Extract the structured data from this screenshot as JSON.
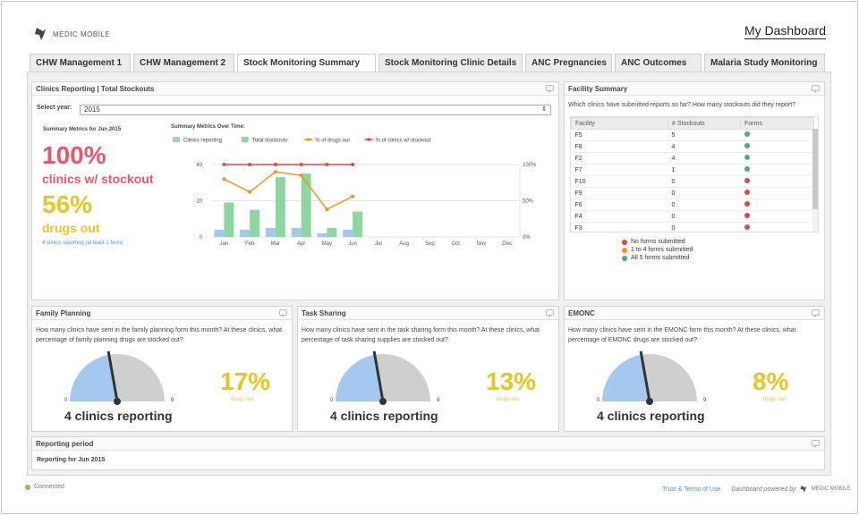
{
  "header": {
    "brand": "MEDIC MOBILE",
    "dashboard_title": "My Dashboard"
  },
  "tabs": [
    {
      "label": "CHW Management 1",
      "active": false
    },
    {
      "label": "CHW Management 2",
      "active": false
    },
    {
      "label": "Stock Monitoring Summary",
      "active": true
    },
    {
      "label": "Stock Monitoring Clinic Details",
      "active": false
    },
    {
      "label": "ANC Pregnancies",
      "active": false
    },
    {
      "label": "ANC Outcomes",
      "active": false
    },
    {
      "label": "Malaria Study Monitoring",
      "active": false
    }
  ],
  "clinics_panel": {
    "title": "Clinics Reporting | Total Stockouts",
    "select_label": "Select year:",
    "select_value": "2015",
    "summary_title": "Summary Metrics for Jun 2015",
    "stockout_pct": "100%",
    "stockout_label": "clinics w/ stockout",
    "drugs_pct": "56%",
    "drugs_label": "drugs out",
    "reporting_note": "4 clinics reporting (at least 1 form)",
    "chart_title": "Summary Metrics Over Time:"
  },
  "chart_data": {
    "type": "bar",
    "categories": [
      "Jan",
      "Feb",
      "Mar",
      "Apr",
      "May",
      "Jun",
      "Jul",
      "Aug",
      "Sep",
      "Oct",
      "Nov",
      "Dec"
    ],
    "series": [
      {
        "name": "Clinics reporting",
        "kind": "bar",
        "axis": "left",
        "color": "#a4c8f0",
        "values": [
          4,
          4,
          5,
          5,
          2,
          4,
          null,
          null,
          null,
          null,
          null,
          null
        ]
      },
      {
        "name": "Total stockouts",
        "kind": "bar",
        "axis": "left",
        "color": "#8ed6a0",
        "values": [
          19,
          15,
          33,
          35,
          5,
          14,
          null,
          null,
          null,
          null,
          null,
          null
        ]
      },
      {
        "name": "% of drugs out",
        "kind": "line",
        "axis": "right",
        "color": "#f0921e",
        "values": [
          80,
          62,
          90,
          85,
          38,
          56,
          null,
          null,
          null,
          null,
          null,
          null
        ]
      },
      {
        "name": "% of clinics w/ stockout",
        "kind": "line",
        "axis": "right",
        "color": "#e04848",
        "values": [
          100,
          100,
          100,
          100,
          100,
          100,
          null,
          null,
          null,
          null,
          null,
          null
        ]
      }
    ],
    "y_left_ticks": [
      "0",
      "20",
      "40"
    ],
    "y_right_ticks": [
      "0%",
      "50%",
      "100%"
    ],
    "ylim_left": [
      0,
      40
    ],
    "ylim_right": [
      0,
      100
    ],
    "legend": "top"
  },
  "facility_panel": {
    "title": "Facility Summary",
    "question": "Which clinics have submitted reports so far? How many stockouts did they report?",
    "columns": [
      "Facility",
      "# Stockouts",
      "Forms"
    ],
    "rows": [
      {
        "facility": "F5",
        "stockouts": "5",
        "status_color": "#4caf70"
      },
      {
        "facility": "F8",
        "stockouts": "4",
        "status_color": "#4caf70"
      },
      {
        "facility": "F2",
        "stockouts": "4",
        "status_color": "#4caf70"
      },
      {
        "facility": "F7",
        "stockouts": "1",
        "status_color": "#4caf70"
      },
      {
        "facility": "F10",
        "stockouts": "0",
        "status_color": "#e04848"
      },
      {
        "facility": "F9",
        "stockouts": "0",
        "status_color": "#e04848"
      },
      {
        "facility": "F6",
        "stockouts": "0",
        "status_color": "#e04848"
      },
      {
        "facility": "F4",
        "stockouts": "0",
        "status_color": "#e04848"
      },
      {
        "facility": "F3",
        "stockouts": "0",
        "status_color": "#e04848"
      }
    ],
    "legend": [
      {
        "label": "No forms submitted",
        "color": "#e04848"
      },
      {
        "label": "1 to 4 forms submitted",
        "color": "#f0921e"
      },
      {
        "label": "All 5 forms submitted",
        "color": "#4caf70"
      }
    ]
  },
  "gauges": [
    {
      "title": "Family Planning",
      "question": "How many clinics have sent in the family planning form this month? At these clinics, what percentage of family planning drugs are stocked out?",
      "min": "0",
      "max": "9",
      "value": 4,
      "percent": "17%",
      "percent_label": "drugs out",
      "reporting": "4 clinics reporting"
    },
    {
      "title": "Task Sharing",
      "question": "How many clinics have sent in the task sharing form this month? At these clinics, what percentage of task sharing supplies are stocked out?",
      "min": "0",
      "max": "9",
      "value": 4,
      "percent": "13%",
      "percent_label": "drugs out",
      "reporting": "4 clinics reporting"
    },
    {
      "title": "EMONC",
      "question": "How many clinics have sent in the EMONC form this month? At these clinics, what percentage of EMONC drugs are stocked out?",
      "min": "0",
      "max": "9",
      "value": 4,
      "percent": "8%",
      "percent_label": "drugs out",
      "reporting": "4 clinics reporting"
    }
  ],
  "reporting_panel": {
    "title": "Reporting period",
    "text": "Reporting for Jun 2015"
  },
  "footer": {
    "status": "Connected",
    "status_color": "#8bc34a",
    "links": "Trust & Terms of Use",
    "powered_by": "Dashboard powered by",
    "powered_brand": "MEDIC MOBILE"
  }
}
